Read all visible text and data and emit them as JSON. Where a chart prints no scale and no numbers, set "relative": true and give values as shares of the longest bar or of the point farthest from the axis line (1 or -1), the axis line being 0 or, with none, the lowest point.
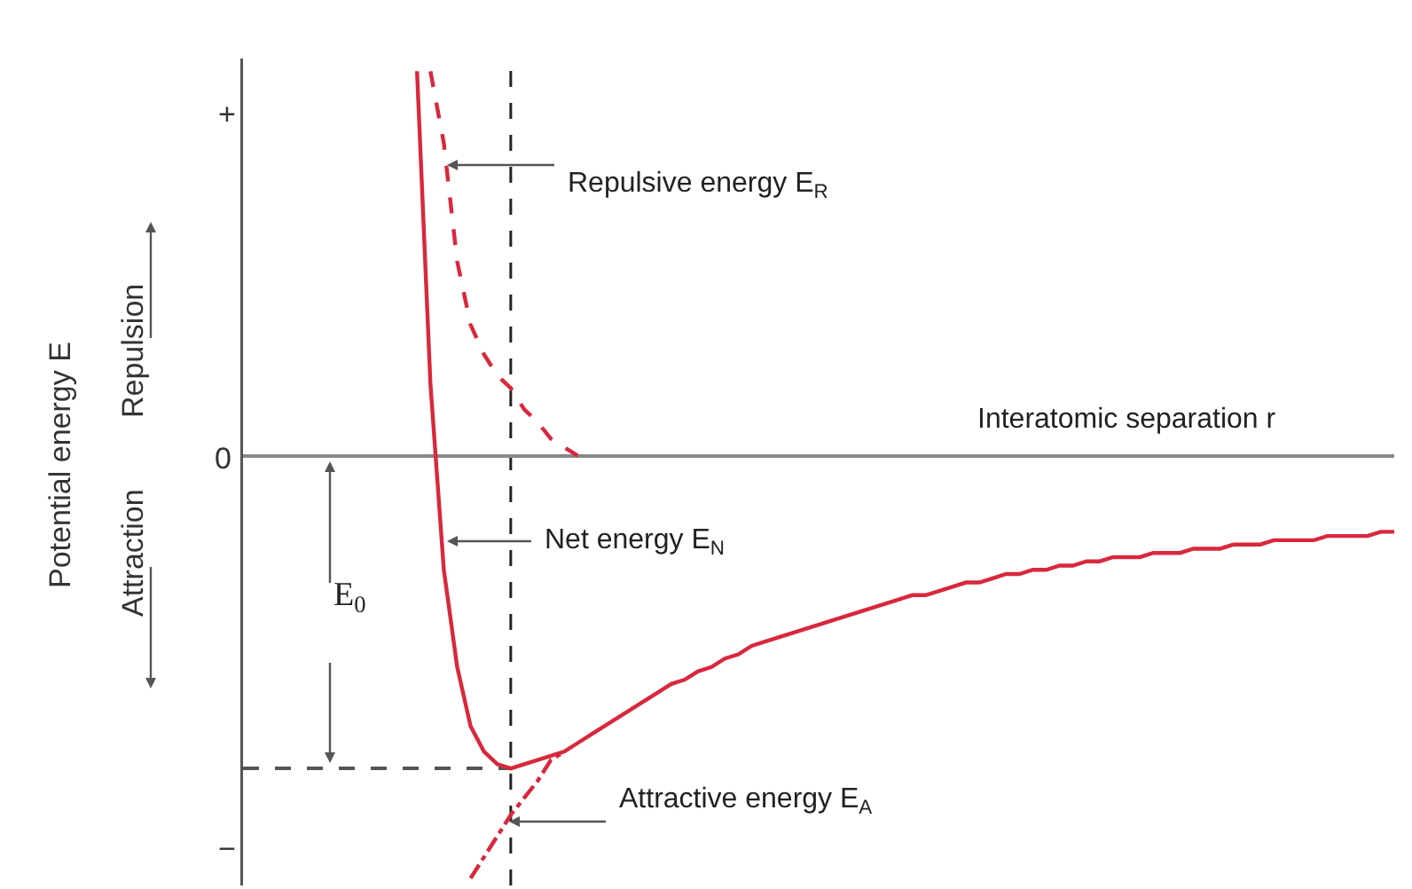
{
  "chart_data": {
    "type": "line",
    "relative": true,
    "xlabel": "Interatomic separation r",
    "categories": [
      null,
      null,
      null,
      null,
      null,
      null,
      null,
      null,
      null,
      null,
      null,
      null,
      null,
      null,
      null,
      null,
      null,
      null,
      null,
      null,
      null,
      null,
      null,
      null,
      null,
      null,
      null,
      null,
      null,
      null,
      null,
      null,
      null,
      null,
      null,
      null,
      null,
      null,
      null,
      null,
      null,
      null,
      null,
      null,
      null,
      null,
      null,
      null,
      null,
      null,
      null,
      null,
      null,
      null,
      null,
      null,
      null,
      null,
      null,
      null,
      null,
      null,
      null,
      null,
      null,
      null,
      null,
      null,
      null,
      null,
      null,
      null,
      null,
      null,
      null,
      null,
      null,
      null,
      null,
      null,
      null,
      null,
      null,
      null,
      null,
      null,
      null
    ],
    "series": [
      {
        "color": "#d8283c",
        "line_style": "solid",
        "values": [
          null,
          null,
          null,
          null,
          null,
          null,
          null,
          null,
          null,
          null,
          null,
          null,
          null,
          0.91,
          0.17,
          -0.27,
          -0.5,
          -0.64,
          -0.7,
          -0.73,
          -0.74,
          -0.73,
          -0.72,
          -0.71,
          -0.7,
          -0.68,
          -0.66,
          -0.64,
          -0.62,
          -0.6,
          -0.58,
          -0.56,
          -0.54,
          -0.53,
          -0.51,
          -0.5,
          -0.48,
          -0.47,
          -0.45,
          -0.44,
          -0.43,
          -0.42,
          -0.41,
          -0.4,
          -0.39,
          -0.38,
          -0.37,
          -0.36,
          -0.35,
          -0.34,
          -0.33,
          -0.33,
          -0.32,
          -0.31,
          -0.3,
          -0.3,
          -0.29,
          -0.28,
          -0.28,
          -0.27,
          -0.27,
          -0.26,
          -0.26,
          -0.25,
          -0.25,
          -0.24,
          -0.24,
          -0.24,
          -0.23,
          -0.23,
          -0.23,
          -0.22,
          -0.22,
          -0.22,
          -0.21,
          -0.21,
          -0.21,
          -0.2,
          -0.2,
          -0.2,
          -0.2,
          -0.19,
          -0.19,
          -0.19,
          -0.19,
          -0.18,
          -0.18
        ]
      },
      {
        "color": "#d8283c",
        "line_style": "dashed",
        "values": [
          null,
          null,
          null,
          null,
          null,
          null,
          null,
          null,
          null,
          null,
          null,
          null,
          null,
          null,
          0.91,
          0.74,
          0.46,
          0.31,
          0.24,
          0.19,
          0.16,
          0.11,
          0.08,
          0.04,
          0.02,
          0,
          null,
          null,
          null,
          null,
          null,
          null,
          null,
          null,
          null,
          null,
          null,
          null,
          null,
          null,
          null,
          null,
          null,
          null,
          null,
          null,
          null,
          null,
          null,
          null,
          null,
          null,
          null,
          null,
          null,
          null,
          null,
          null,
          null,
          null,
          null,
          null,
          null,
          null,
          null,
          null,
          null,
          null,
          null,
          null,
          null,
          null,
          null,
          null,
          null,
          null,
          null,
          null,
          null,
          null,
          null,
          null,
          null,
          null,
          null,
          null,
          null
        ]
      },
      {
        "color": "#d8283c",
        "line_style": "dashdot",
        "values": [
          null,
          null,
          null,
          null,
          null,
          null,
          null,
          null,
          null,
          null,
          null,
          null,
          null,
          null,
          null,
          null,
          null,
          -1,
          -0.95,
          -0.9,
          -0.85,
          -0.81,
          -0.77,
          -0.72,
          -0.7,
          null,
          null,
          null,
          null,
          null,
          null,
          null,
          null,
          null,
          null,
          null,
          null,
          null,
          null,
          null,
          null,
          null,
          null,
          null,
          null,
          null,
          null,
          null,
          null,
          null,
          null,
          null,
          null,
          null,
          null,
          null,
          null,
          null,
          null,
          null,
          null,
          null,
          null,
          null,
          null,
          null,
          null,
          null,
          null,
          null,
          null,
          null,
          null,
          null,
          null,
          null,
          null,
          null,
          null,
          null,
          null,
          null,
          null,
          null,
          null,
          null,
          null
        ]
      }
    ],
    "ref_lines": [
      {
        "axis": "y",
        "value": -0.74,
        "color": "#555555",
        "line_style": "dashed"
      }
    ],
    "annotations": [
      "Repulsive energy E$_{R}$",
      "Net energy E$_{N}$",
      "Attractive energy E$_{A}$",
      "E$_{0}$",
      "Repulsion",
      "Attraction",
      "+",
      "0",
      "−",
      "Potential energy E"
    ]
  }
}
